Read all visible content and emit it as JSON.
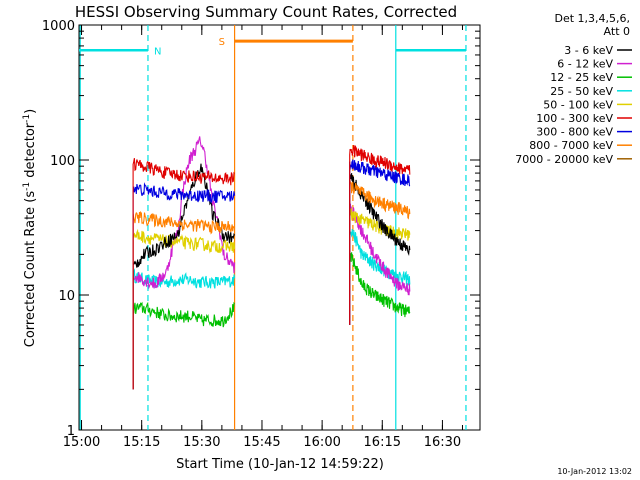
{
  "chart_data": {
    "type": "line",
    "title": "HESSI Observing Summary Count Rates, Corrected",
    "xlabel": "Start Time (10-Jan-12 14:59:22)",
    "ylabel_main": "Corrected Count Rate (s",
    "ylabel_sup1": "-1",
    "ylabel_mid": " detector",
    "ylabel_sup2": "-1",
    "ylabel_end": ")",
    "y_scale": "log",
    "ylim": [
      1,
      1000
    ],
    "xlim_minutes": [
      0,
      100
    ],
    "x_tick_labels": [
      "15:00",
      "15:15",
      "15:30",
      "15:45",
      "16:00",
      "16:15",
      "16:30"
    ],
    "x_tick_minutes": [
      0.63,
      15.63,
      30.63,
      45.63,
      60.63,
      75.63,
      90.63
    ],
    "y_tick_labels": [
      "1",
      "10",
      "100",
      "1000"
    ],
    "y_tick_values": [
      1,
      10,
      100,
      1000
    ],
    "legend_header": [
      "Det 1,3,4,5,6,",
      "Att 0"
    ],
    "legend_placement": "right",
    "footer": "10-Jan-2012 13:02",
    "segments": [
      [
        13.5,
        38.8
      ],
      [
        67.5,
        82.5
      ]
    ],
    "series": [
      {
        "name": "3 - 6 keV",
        "color": "#000000",
        "seg1": [
          16,
          20,
          22,
          25,
          28,
          55,
          90,
          40,
          28,
          26
        ],
        "seg2": [
          75,
          55,
          40,
          30,
          25,
          21
        ]
      },
      {
        "name": "6 - 12 keV",
        "color": "#d020d0",
        "seg1": [
          14,
          13,
          12,
          15,
          30,
          100,
          140,
          50,
          20,
          16
        ],
        "seg2": [
          45,
          30,
          20,
          15,
          12,
          11
        ]
      },
      {
        "name": "12 - 25 keV",
        "color": "#00c000",
        "seg1": [
          8,
          8,
          7.5,
          7,
          7,
          7,
          6.5,
          6.5,
          6.5,
          8
        ],
        "seg2": [
          20,
          12,
          10,
          9,
          8,
          7.5
        ]
      },
      {
        "name": "25 - 50 keV",
        "color": "#00e0e0",
        "seg1": [
          14,
          13,
          12.5,
          12.5,
          13,
          13,
          12.5,
          12.5,
          12.5,
          13
        ],
        "seg2": [
          32,
          20,
          17,
          15,
          14,
          13
        ]
      },
      {
        "name": "50 - 100 keV",
        "color": "#e0d000",
        "seg1": [
          28,
          27,
          26,
          25,
          25,
          24,
          24,
          23,
          23,
          23
        ],
        "seg2": [
          40,
          36,
          33,
          30,
          29,
          28
        ]
      },
      {
        "name": "100 - 300 keV",
        "color": "#e00000",
        "seg1": [
          95,
          90,
          85,
          80,
          78,
          76,
          75,
          74,
          73,
          73
        ],
        "seg2": [
          120,
          110,
          100,
          95,
          88,
          83
        ]
      },
      {
        "name": "300 - 800 keV",
        "color": "#0000e0",
        "seg1": [
          62,
          60,
          58,
          57,
          56,
          55,
          55,
          54,
          54,
          54
        ],
        "seg2": [
          95,
          88,
          83,
          78,
          74,
          70
        ]
      },
      {
        "name": "800 - 7000 keV",
        "color": "#ff8000",
        "seg1": [
          38,
          37,
          36,
          35,
          34,
          33,
          33,
          32,
          32,
          32
        ],
        "seg2": [
          65,
          57,
          51,
          47,
          44,
          41
        ]
      },
      {
        "name": "7000 - 20000 keV",
        "color": "#a06000",
        "seg1": [],
        "seg2": []
      }
    ],
    "events": {
      "night_level": 650,
      "night_color": "#00e0e0",
      "night_intervals": [
        [
          0,
          17.2
        ],
        [
          79.0,
          96.5
        ]
      ],
      "night_label": "N",
      "saa_level": 760,
      "saa_color": "#ff8000",
      "saa_intervals": [
        [
          38.8,
          68.3
        ]
      ],
      "saa_label": "S",
      "solid_lines": [
        {
          "x": 0.3,
          "color": "#00e0e0"
        },
        {
          "x": 38.8,
          "color": "#ff8000"
        },
        {
          "x": 79.0,
          "color": "#00e0e0"
        }
      ],
      "dashed_lines": [
        {
          "x": 17.2,
          "color": "#00e0e0"
        },
        {
          "x": 68.3,
          "color": "#ff8000"
        },
        {
          "x": 96.5,
          "color": "#00e0e0"
        }
      ]
    }
  }
}
